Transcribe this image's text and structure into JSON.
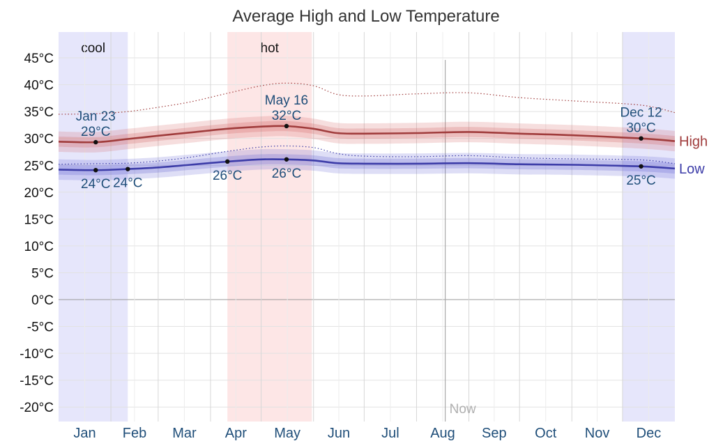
{
  "chart_data": {
    "type": "line",
    "title": "Average High and Low Temperature",
    "ylim": [
      -22.5,
      45
    ],
    "y_ticks": [
      "45°C",
      "40°C",
      "35°C",
      "30°C",
      "25°C",
      "20°C",
      "15°C",
      "10°C",
      "5°C",
      "0°C",
      "-5°C",
      "-10°C",
      "-15°C",
      "-20°C"
    ],
    "y_tick_values": [
      45,
      40,
      35,
      30,
      25,
      20,
      15,
      10,
      5,
      0,
      -5,
      -10,
      -15,
      -20
    ],
    "categories": [
      "Jan",
      "Feb",
      "Mar",
      "Apr",
      "May",
      "Jun",
      "Jul",
      "Aug",
      "Sep",
      "Oct",
      "Nov",
      "Dec"
    ],
    "bands": [
      {
        "label": "cool",
        "start": "Jan 1",
        "end": "Feb 11",
        "color": "#e6e6fb"
      },
      {
        "label": "hot",
        "start": "Apr 11",
        "end": "May 31",
        "color": "#fde6e6"
      },
      {
        "label": "",
        "start": "Dec 1",
        "end": "Dec 31",
        "color": "#e6e6fb"
      }
    ],
    "x": [
      "Jan 1",
      "Jan 23",
      "Feb 11",
      "Mar 1",
      "Mar 20",
      "Apr 11",
      "May 1",
      "May 16",
      "Jun 1",
      "Jun 15",
      "Jul 1",
      "Aug 1",
      "Sep 1",
      "Oct 1",
      "Nov 1",
      "Dec 12",
      "Dec 31"
    ],
    "series": [
      {
        "name": "High",
        "color": "#a03c3c",
        "values": [
          29.4,
          29.3,
          29.9,
          30.5,
          31.1,
          31.8,
          32.2,
          32.3,
          31.8,
          31.0,
          30.9,
          31.0,
          31.2,
          30.9,
          30.6,
          30.0,
          29.5
        ],
        "upper90": [
          34.5,
          34.6,
          35.0,
          35.8,
          36.8,
          38.4,
          39.8,
          40.3,
          39.8,
          38.2,
          37.9,
          38.3,
          38.5,
          37.6,
          37.0,
          36.2,
          34.8
        ]
      },
      {
        "name": "Low",
        "color": "#3c3ca8",
        "values": [
          24.2,
          24.1,
          24.3,
          24.6,
          25.1,
          25.7,
          26.1,
          26.1,
          25.9,
          25.4,
          25.3,
          25.3,
          25.4,
          25.2,
          25.1,
          24.8,
          24.4
        ],
        "upper90": [
          25.2,
          25.3,
          25.4,
          25.8,
          26.5,
          27.6,
          28.4,
          28.6,
          28.3,
          27.2,
          26.7,
          26.6,
          26.8,
          26.4,
          26.2,
          26.0,
          25.3
        ]
      }
    ],
    "annotations": [
      {
        "date": "Jan 23",
        "value": 29.3,
        "label": "29°C",
        "date_label": "Jan 23"
      },
      {
        "date": "Jan 23",
        "value": 24.1,
        "label": "24°C",
        "date_label": ""
      },
      {
        "date": "Feb 11",
        "value": 24.3,
        "label": "24°C",
        "date_label": ""
      },
      {
        "date": "Apr 11",
        "value": 25.7,
        "label": "26°C",
        "date_label": ""
      },
      {
        "date": "May 16",
        "value": 32.3,
        "label": "32°C",
        "date_label": "May 16"
      },
      {
        "date": "May 16",
        "value": 26.1,
        "label": "26°C",
        "date_label": ""
      },
      {
        "date": "Dec 12",
        "value": 30.0,
        "label": "30°C",
        "date_label": "Dec 12"
      },
      {
        "date": "Dec 12",
        "value": 24.8,
        "label": "25°C",
        "date_label": ""
      }
    ],
    "now_marker": {
      "date": "Aug 18",
      "label": "Now"
    },
    "grid": true,
    "legend": "right"
  }
}
